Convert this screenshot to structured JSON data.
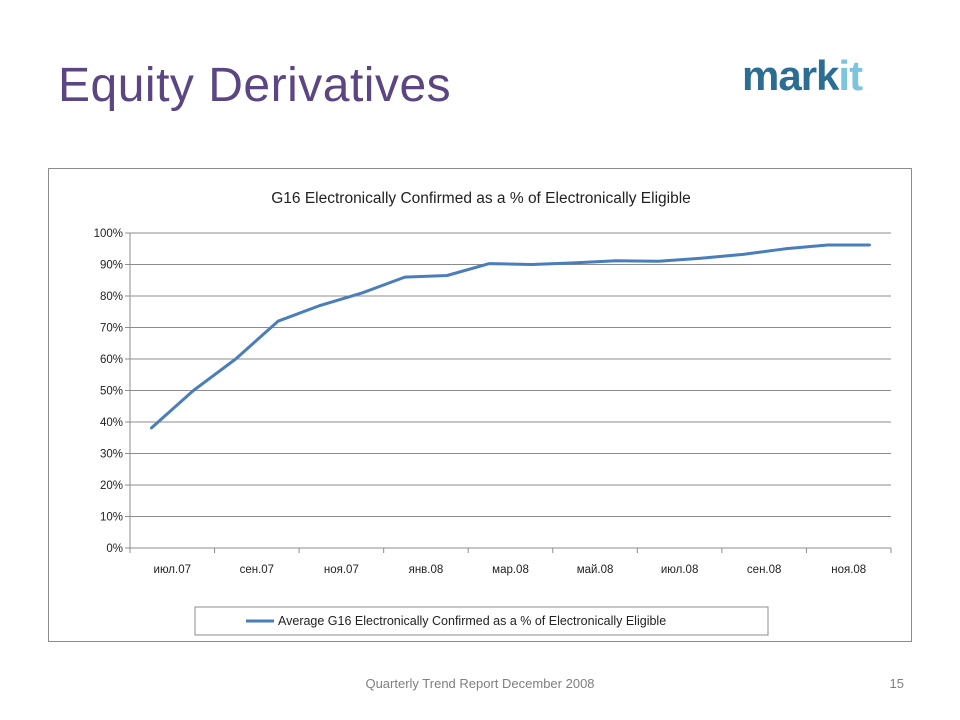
{
  "slide": {
    "title": "Equity Derivatives",
    "footer": "Quarterly Trend Report December 2008",
    "page_number": "15"
  },
  "logo": {
    "part1": "mark",
    "part2": "it"
  },
  "colors": {
    "title": "#5b4683",
    "series": "#4a7ebb",
    "logo_dark": "#2b6d93",
    "logo_light": "#7fc4df"
  },
  "chart_data": {
    "type": "line",
    "title": "G16 Electronically Confirmed as a % of Electronically Eligible",
    "xlabel": "",
    "ylabel": "",
    "ylim": [
      0,
      100
    ],
    "y_ticks": [
      "0%",
      "10%",
      "20%",
      "30%",
      "40%",
      "50%",
      "60%",
      "70%",
      "80%",
      "90%",
      "100%"
    ],
    "x_tick_labels": [
      "июл.07",
      "сен.07",
      "ноя.07",
      "янв.08",
      "мар.08",
      "май.08",
      "июл.08",
      "сен.08",
      "ноя.08"
    ],
    "categories": [
      "Jul-07",
      "Aug-07",
      "Sep-07",
      "Oct-07",
      "Nov-07",
      "Dec-07",
      "Jan-08",
      "Feb-08",
      "Mar-08",
      "Apr-08",
      "May-08",
      "Jun-08",
      "Jul-08",
      "Aug-08",
      "Sep-08",
      "Oct-08",
      "Nov-08",
      "Dec-08"
    ],
    "series": [
      {
        "name": "Average G16 Electronically Confirmed as a % of Electronically Eligible",
        "values": [
          38,
          50,
          60,
          72,
          77,
          81,
          86,
          86.5,
          90.3,
          90,
          90.5,
          91.2,
          91,
          92,
          93.2,
          95,
          96.2,
          96.2
        ]
      }
    ],
    "grid": true,
    "legend_position": "bottom"
  }
}
